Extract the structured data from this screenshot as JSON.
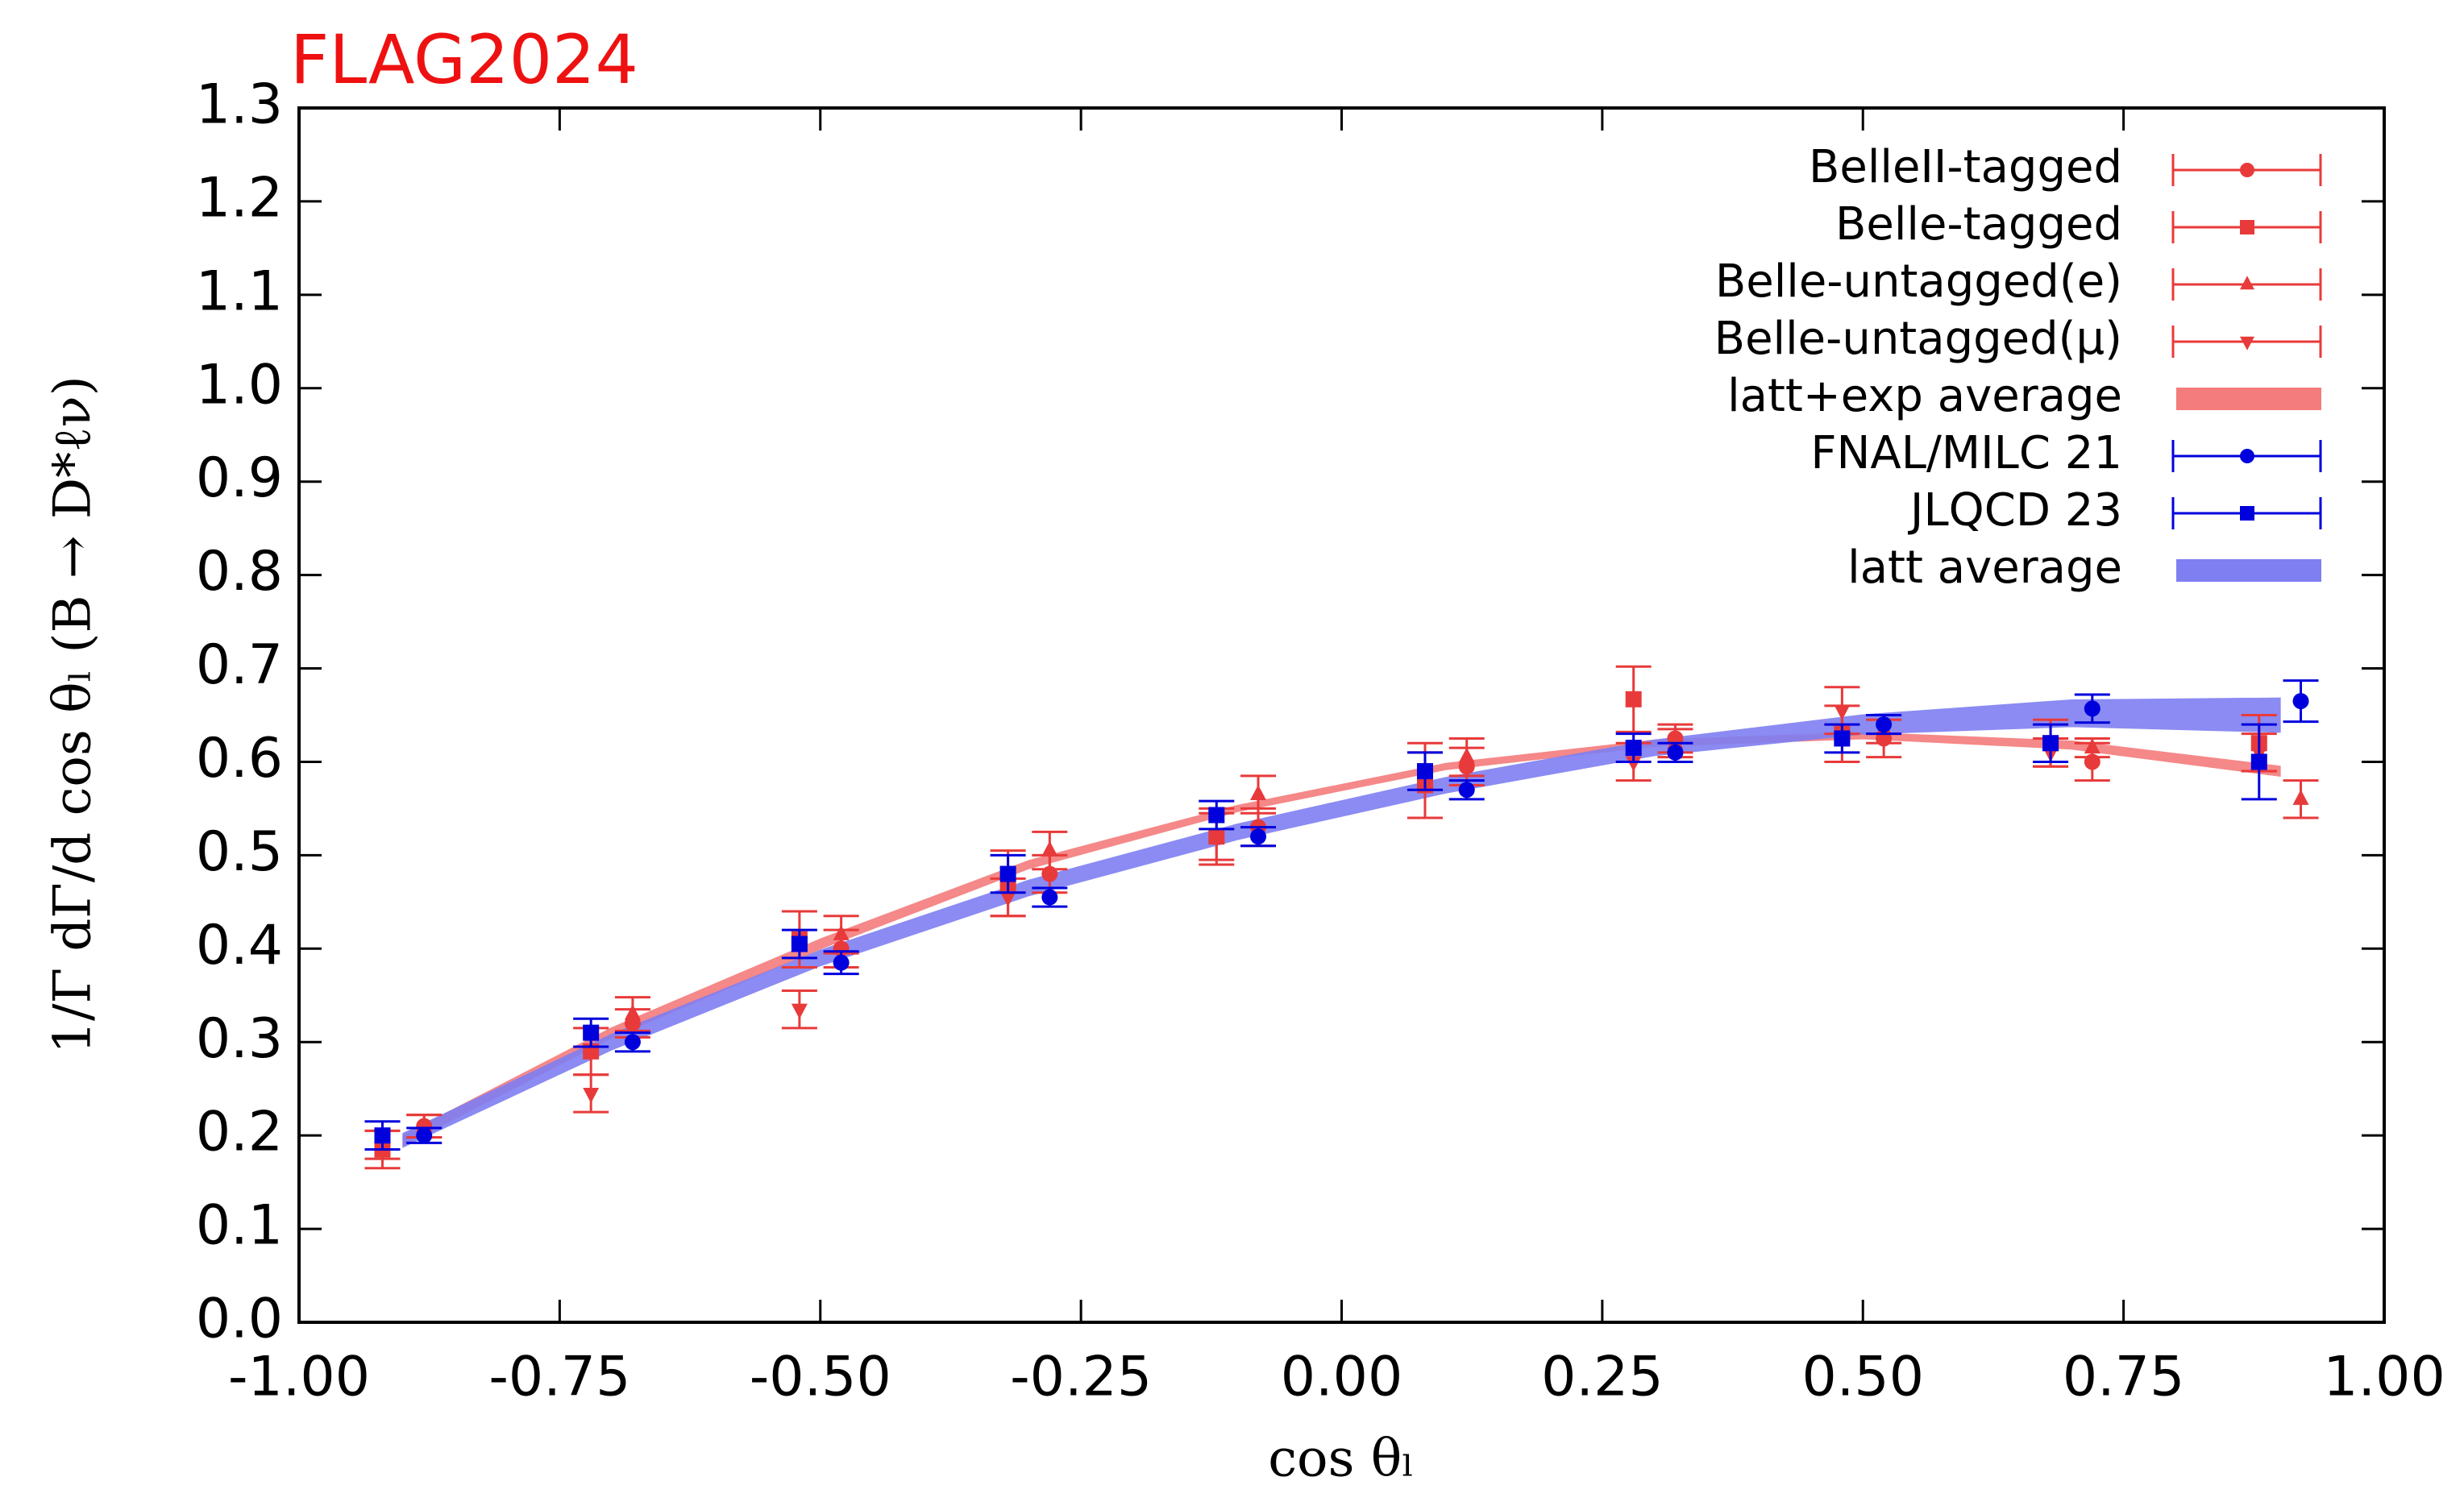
{
  "chart_data": {
    "type": "scatter",
    "title": "FLAG2024",
    "title_color": "#ee1111",
    "x_label": "cos θₗ",
    "y_label": "1/Γ dΓ/d cos θₗ (B → D*ℓν)",
    "xlim": [
      -1,
      1
    ],
    "ylim": [
      0,
      1.3
    ],
    "xticks": [
      {
        "value": -1,
        "label": "-1.00"
      },
      {
        "value": -0.75,
        "label": "-0.75"
      },
      {
        "value": -0.5,
        "label": "-0.50"
      },
      {
        "value": -0.25,
        "label": "-0.25"
      },
      {
        "value": 0,
        "label": "0.00"
      },
      {
        "value": 0.25,
        "label": "0.25"
      },
      {
        "value": 0.5,
        "label": "0.50"
      },
      {
        "value": 0.75,
        "label": "0.75"
      },
      {
        "value": 1,
        "label": "1.00"
      }
    ],
    "yticks": [
      {
        "value": 0,
        "label": "0.0"
      },
      0.1,
      0.2,
      0.3,
      0.4,
      0.5,
      0.6,
      0.7,
      0.8,
      0.9,
      {
        "value": 1,
        "label": "1.0"
      },
      1.1,
      1.2,
      1.3
    ],
    "legend": "upper right",
    "series": [
      {
        "name": "BelleII-tagged",
        "color": "#e83a3a",
        "marker": "circle",
        "x": [
          -0.88,
          -0.68,
          -0.48,
          -0.28,
          -0.08,
          0.12,
          0.32,
          0.52,
          0.72
        ],
        "values": [
          0.21,
          0.32,
          0.4,
          0.48,
          0.53,
          0.595,
          0.625,
          0.625,
          0.6
        ],
        "errors": [
          0.012,
          0.015,
          0.02,
          0.02,
          0.02,
          0.02,
          0.015,
          0.02,
          0.02
        ]
      },
      {
        "name": "Belle-tagged",
        "color": "#e83a3a",
        "marker": "square",
        "x": [
          -0.92,
          -0.72,
          -0.52,
          -0.32,
          -0.12,
          0.08,
          0.28,
          0.48,
          0.68,
          0.88
        ],
        "values": [
          0.185,
          0.29,
          0.41,
          0.47,
          0.52,
          0.575,
          0.667,
          0.63,
          0.62,
          0.62
        ],
        "errors": [
          0.02,
          0.025,
          0.03,
          0.035,
          0.03,
          0.035,
          0.035,
          0.03,
          0.025,
          0.03
        ]
      },
      {
        "name": "Belle-untagged(e)",
        "color": "#e83a3a",
        "marker": "triangle-up",
        "x": [
          -0.88,
          -0.68,
          -0.48,
          -0.28,
          -0.08,
          0.12,
          0.32,
          0.52,
          0.72,
          0.92
        ],
        "values": [
          0.21,
          0.33,
          0.415,
          0.505,
          0.565,
          0.605,
          0.62,
          0.635,
          0.615,
          0.56
        ],
        "errors": [
          0.012,
          0.018,
          0.02,
          0.02,
          0.02,
          0.02,
          0.015,
          0.015,
          0.01,
          0.02
        ]
      },
      {
        "name": "Belle-untagged(μ)",
        "color": "#e83a3a",
        "marker": "triangle-down",
        "x": [
          -0.92,
          -0.72,
          -0.52,
          -0.32,
          -0.12,
          0.08,
          0.28,
          0.48,
          0.68,
          0.88
        ],
        "values": [
          0.19,
          0.245,
          0.335,
          0.455,
          0.52,
          0.58,
          0.6,
          0.655,
          0.61,
          0.61
        ],
        "errors": [
          0.015,
          0.02,
          0.02,
          0.02,
          0.025,
          0.04,
          0.02,
          0.025,
          0.015,
          0.02
        ]
      },
      {
        "name": "latt+exp average",
        "color": "#f47c7c",
        "x": [
          -0.9,
          -0.7,
          -0.5,
          -0.3,
          -0.1,
          0.1,
          0.3,
          0.5,
          0.7,
          0.9
        ],
        "lower": [
          0.19,
          0.305,
          0.4,
          0.486,
          0.547,
          0.592,
          0.617,
          0.625,
          0.614,
          0.585
        ],
        "upper": [
          0.2,
          0.315,
          0.41,
          0.494,
          0.553,
          0.598,
          0.623,
          0.631,
          0.622,
          0.595
        ]
      },
      {
        "name": "FNAL/MILC 21",
        "color": "#0000dd",
        "marker": "circle",
        "x": [
          -0.88,
          -0.68,
          -0.48,
          -0.28,
          -0.08,
          0.12,
          0.32,
          0.52,
          0.72,
          0.92
        ],
        "values": [
          0.2,
          0.3,
          0.385,
          0.455,
          0.52,
          0.57,
          0.61,
          0.64,
          0.657,
          0.665
        ],
        "errors": [
          0.008,
          0.01,
          0.012,
          0.01,
          0.01,
          0.01,
          0.01,
          0.01,
          0.015,
          0.022
        ]
      },
      {
        "name": "JLQCD 23",
        "color": "#0000dd",
        "marker": "square",
        "x": [
          -0.92,
          -0.72,
          -0.52,
          -0.32,
          -0.12,
          0.08,
          0.28,
          0.48,
          0.68,
          0.88
        ],
        "values": [
          0.2,
          0.31,
          0.405,
          0.48,
          0.543,
          0.59,
          0.615,
          0.625,
          0.62,
          0.6
        ],
        "errors": [
          0.015,
          0.015,
          0.015,
          0.02,
          0.015,
          0.02,
          0.015,
          0.015,
          0.02,
          0.04
        ]
      },
      {
        "name": "latt average",
        "color": "#7f7ff2",
        "x": [
          -0.9,
          -0.7,
          -0.5,
          -0.3,
          -0.1,
          0.1,
          0.3,
          0.5,
          0.7,
          0.9
        ],
        "lower": [
          0.188,
          0.292,
          0.382,
          0.457,
          0.517,
          0.567,
          0.607,
          0.63,
          0.638,
          0.632
        ],
        "upper": [
          0.202,
          0.308,
          0.398,
          0.473,
          0.533,
          0.583,
          0.623,
          0.65,
          0.666,
          0.668
        ]
      }
    ]
  }
}
